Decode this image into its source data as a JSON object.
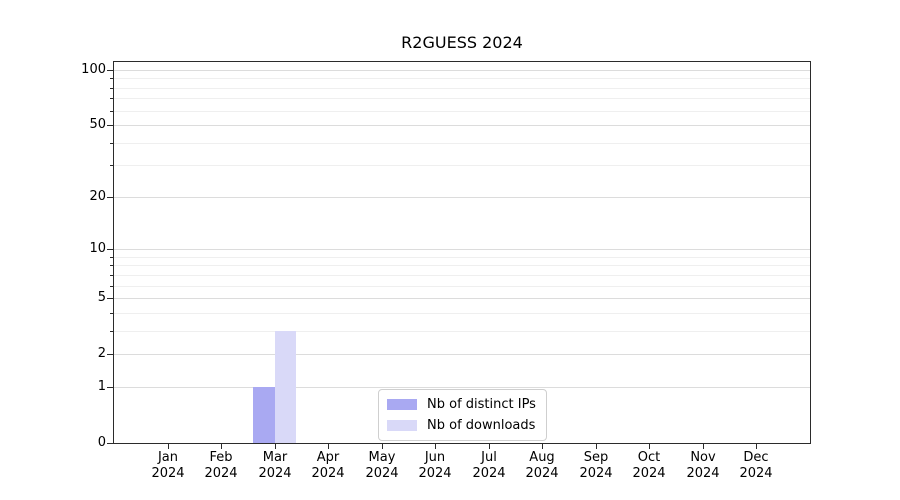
{
  "title": "R2GUESS 2024",
  "chart_data": {
    "type": "bar",
    "title": "R2GUESS 2024",
    "categories": [
      "Jan 2024",
      "Feb 2024",
      "Mar 2024",
      "Apr 2024",
      "May 2024",
      "Jun 2024",
      "Jul 2024",
      "Aug 2024",
      "Sep 2024",
      "Oct 2024",
      "Nov 2024",
      "Dec 2024"
    ],
    "months": [
      "Jan",
      "Feb",
      "Mar",
      "Apr",
      "May",
      "Jun",
      "Jul",
      "Aug",
      "Sep",
      "Oct",
      "Nov",
      "Dec"
    ],
    "year_label": "2024",
    "series": [
      {
        "name": "Nb of distinct IPs",
        "color": "#a9a9f2",
        "values": [
          0,
          0,
          1,
          0,
          0,
          0,
          0,
          0,
          0,
          0,
          0,
          0
        ]
      },
      {
        "name": "Nb of downloads",
        "color": "#d9d9f8",
        "values": [
          0,
          0,
          3,
          0,
          0,
          0,
          0,
          0,
          0,
          0,
          0,
          0
        ]
      }
    ],
    "xlabel": "",
    "ylabel": "",
    "y_scale": "log10(value+1)",
    "y_major_ticks": [
      0,
      1,
      2,
      5,
      10,
      20,
      50,
      100
    ],
    "y_minor_ticks": [
      3,
      4,
      6,
      7,
      8,
      9,
      30,
      40,
      60,
      70,
      80,
      90
    ],
    "ylim": [
      0,
      110
    ],
    "grid": true,
    "legend_position": "lower center",
    "axis_color": "#2b2b2b",
    "grid_major_color": "#dcdcdc",
    "grid_minor_color": "#efefef"
  }
}
